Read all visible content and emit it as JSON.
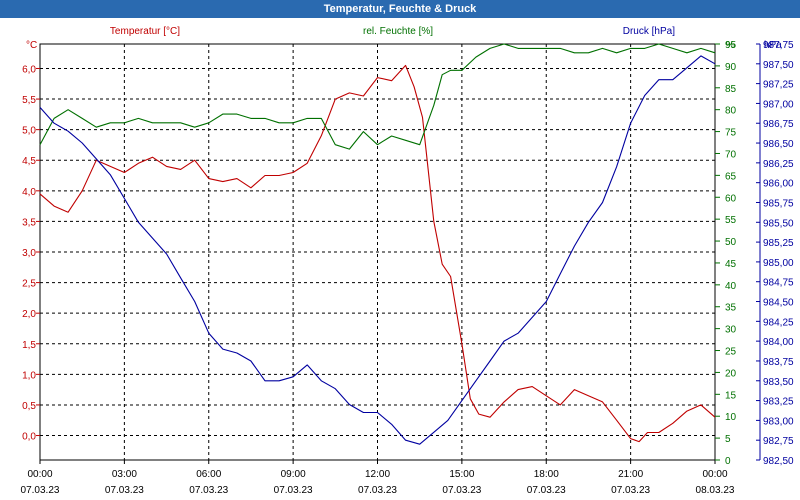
{
  "chart_data": {
    "type": "line",
    "title": "Temperatur, Feuchte & Druck",
    "x_tick_labels": [
      {
        "time": "00:00",
        "date": "07.03.23"
      },
      {
        "time": "03:00",
        "date": "07.03.23"
      },
      {
        "time": "06:00",
        "date": "07.03.23"
      },
      {
        "time": "09:00",
        "date": "07.03.23"
      },
      {
        "time": "12:00",
        "date": "07.03.23"
      },
      {
        "time": "15:00",
        "date": "07.03.23"
      },
      {
        "time": "18:00",
        "date": "07.03.23"
      },
      {
        "time": "21:00",
        "date": "07.03.23"
      },
      {
        "time": "00:00",
        "date": "08.03.23"
      }
    ],
    "x_range_hours": [
      0,
      24
    ],
    "grid": true,
    "legend": "top",
    "axes": {
      "temperature": {
        "label": "Temperatur [°C]",
        "unit": "°C",
        "range": [
          -0.4,
          6.4
        ],
        "ticks": [
          "6,0",
          "5,5",
          "5,0",
          "4,5",
          "4,0",
          "3,5",
          "3,0",
          "2,5",
          "2,0",
          "1,5",
          "1,0",
          "0,5",
          "0,0"
        ],
        "tick_values": [
          6.0,
          5.5,
          5.0,
          4.5,
          4.0,
          3.5,
          3.0,
          2.5,
          2.0,
          1.5,
          1.0,
          0.5,
          0.0
        ],
        "color": "#c00000",
        "side": "left"
      },
      "humidity": {
        "label": "rel. Feuchte [%]",
        "unit": "%",
        "range": [
          0,
          95
        ],
        "ticks": [
          "95",
          "90",
          "85",
          "80",
          "75",
          "70",
          "65",
          "60",
          "55",
          "50",
          "45",
          "40",
          "35",
          "30",
          "25",
          "20",
          "15",
          "10",
          "5",
          "0"
        ],
        "tick_values": [
          95,
          90,
          85,
          80,
          75,
          70,
          65,
          60,
          55,
          50,
          45,
          40,
          35,
          30,
          25,
          20,
          15,
          10,
          5,
          0
        ],
        "color": "#007000",
        "side": "right"
      },
      "pressure": {
        "label": "Druck [hPa]",
        "unit": "hPa",
        "range": [
          982.5,
          987.75
        ],
        "ticks": [
          "987,75",
          "987,50",
          "987,25",
          "987,00",
          "986,75",
          "986,50",
          "986,25",
          "986,00",
          "985,75",
          "985,50",
          "985,25",
          "985,00",
          "984,75",
          "984,50",
          "984,25",
          "984,00",
          "983,75",
          "983,50",
          "983,25",
          "983,00",
          "982,75",
          "982,50"
        ],
        "tick_values": [
          987.75,
          987.5,
          987.25,
          987.0,
          986.75,
          986.5,
          986.25,
          986.0,
          985.75,
          985.5,
          985.25,
          985.0,
          984.75,
          984.5,
          984.25,
          984.0,
          983.75,
          983.5,
          983.25,
          983.0,
          982.75,
          982.5
        ],
        "color": "#0000a0",
        "side": "right"
      }
    },
    "series": [
      {
        "name": "Temperatur [°C]",
        "axis": "temperature",
        "color": "#c00000",
        "x": [
          0,
          0.5,
          1,
          1.5,
          2,
          2.5,
          3,
          3.5,
          4,
          4.5,
          5,
          5.5,
          6,
          6.5,
          7,
          7.5,
          8,
          8.5,
          9,
          9.5,
          10,
          10.5,
          11,
          11.5,
          12,
          12.5,
          13,
          13.3,
          13.6,
          14,
          14.3,
          14.6,
          15,
          15.3,
          15.6,
          16,
          16.5,
          17,
          17.5,
          18,
          18.5,
          19,
          19.5,
          20,
          20.5,
          21,
          21.3,
          21.6,
          22,
          22.5,
          23,
          23.5,
          24
        ],
        "values": [
          3.95,
          3.75,
          3.65,
          4.0,
          4.5,
          4.4,
          4.3,
          4.45,
          4.55,
          4.4,
          4.35,
          4.5,
          4.2,
          4.15,
          4.2,
          4.05,
          4.25,
          4.25,
          4.3,
          4.45,
          4.9,
          5.5,
          5.6,
          5.55,
          5.85,
          5.8,
          6.05,
          5.7,
          5.2,
          3.5,
          2.8,
          2.6,
          1.5,
          0.6,
          0.35,
          0.3,
          0.55,
          0.75,
          0.8,
          0.65,
          0.5,
          0.75,
          0.65,
          0.55,
          0.25,
          -0.05,
          -0.1,
          0.05,
          0.05,
          0.2,
          0.4,
          0.5,
          0.3
        ]
      },
      {
        "name": "rel. Feuchte [%]",
        "axis": "humidity",
        "color": "#007000",
        "x": [
          0,
          0.5,
          1,
          1.5,
          2,
          2.5,
          3,
          3.5,
          4,
          4.5,
          5,
          5.5,
          6,
          6.5,
          7,
          7.5,
          8,
          8.5,
          9,
          9.5,
          10,
          10.5,
          11,
          11.5,
          12,
          12.5,
          13,
          13.5,
          14,
          14.3,
          14.6,
          15,
          15.5,
          16,
          16.5,
          17,
          17.5,
          18,
          18.5,
          19,
          19.5,
          20,
          20.5,
          21,
          21.5,
          22,
          22.5,
          23,
          23.5,
          24
        ],
        "values": [
          72,
          78,
          80,
          78,
          76,
          77,
          77,
          78,
          77,
          77,
          77,
          76,
          77,
          79,
          79,
          78,
          78,
          77,
          77,
          78,
          78,
          72,
          71,
          75,
          72,
          74,
          73,
          72,
          81,
          88,
          89,
          89,
          92,
          94,
          95,
          94,
          94,
          94,
          94,
          93,
          93,
          94,
          93,
          94,
          94,
          95,
          94,
          93,
          94,
          93
        ]
      },
      {
        "name": "Druck [hPa]",
        "axis": "pressure",
        "color": "#0000a0",
        "x": [
          0,
          0.5,
          1,
          1.5,
          2,
          2.5,
          3,
          3.5,
          4,
          4.5,
          5,
          5.5,
          6,
          6.5,
          7,
          7.5,
          8,
          8.5,
          9,
          9.5,
          10,
          10.5,
          11,
          11.5,
          12,
          12.5,
          13,
          13.5,
          14,
          14.5,
          15,
          15.5,
          16,
          16.5,
          17,
          17.5,
          18,
          18.5,
          19,
          19.5,
          20,
          20.5,
          21,
          21.5,
          22,
          22.5,
          23,
          23.5,
          24
        ],
        "values": [
          986.95,
          986.75,
          986.65,
          986.5,
          986.3,
          986.1,
          985.8,
          985.5,
          985.3,
          985.1,
          984.8,
          984.5,
          984.1,
          983.9,
          983.85,
          983.75,
          983.5,
          983.5,
          983.55,
          983.7,
          983.5,
          983.4,
          983.2,
          983.1,
          983.1,
          982.95,
          982.75,
          982.7,
          982.85,
          983.0,
          983.25,
          983.5,
          983.75,
          984.0,
          984.1,
          984.3,
          984.5,
          984.85,
          985.2,
          985.5,
          985.75,
          986.2,
          986.75,
          987.1,
          987.3,
          987.3,
          987.45,
          987.6,
          987.5
        ]
      }
    ]
  }
}
